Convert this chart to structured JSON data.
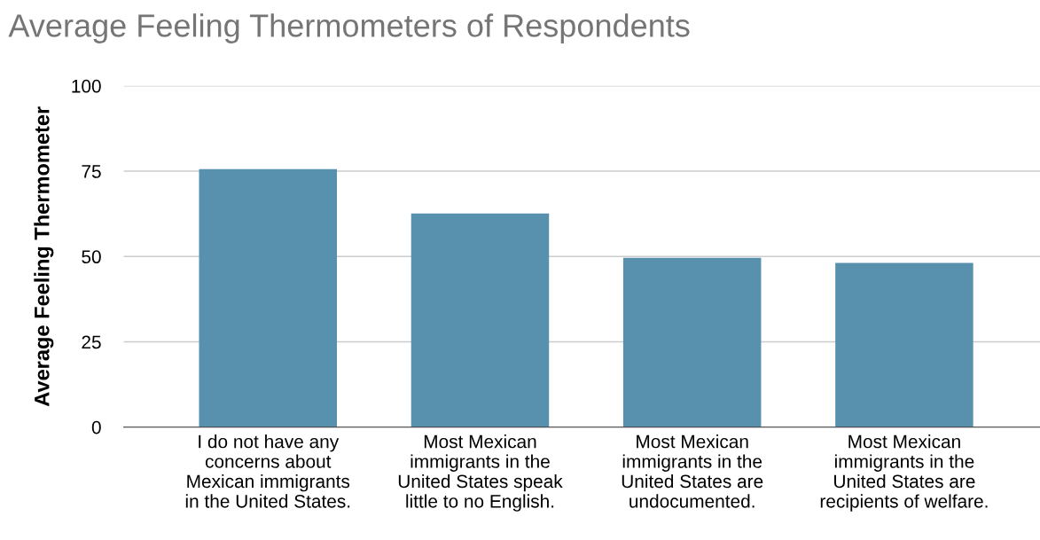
{
  "chart_data": {
    "type": "bar",
    "title": "Average Feeling Thermometers of Respondents",
    "ylabel": "Average Feeling Thermometer",
    "categories": [
      "I do not have any\nconcerns about\nMexican immigrants\nin the United States.",
      "Most Mexican\nimmigrants in the\nUnited States speak\nlittle to no English.",
      "Most Mexican\nimmigrants in the\nUnited States are\nundocumented.",
      "Most Mexican\nimmigrants in the\nUnited States are\nrecipients of welfare."
    ],
    "values": [
      75.6,
      62.6,
      49.6,
      48.1
    ],
    "color": "#5891ad",
    "ylim": [
      0,
      100
    ],
    "yticks": [
      0,
      25,
      50,
      75,
      100
    ],
    "grid": "y"
  }
}
